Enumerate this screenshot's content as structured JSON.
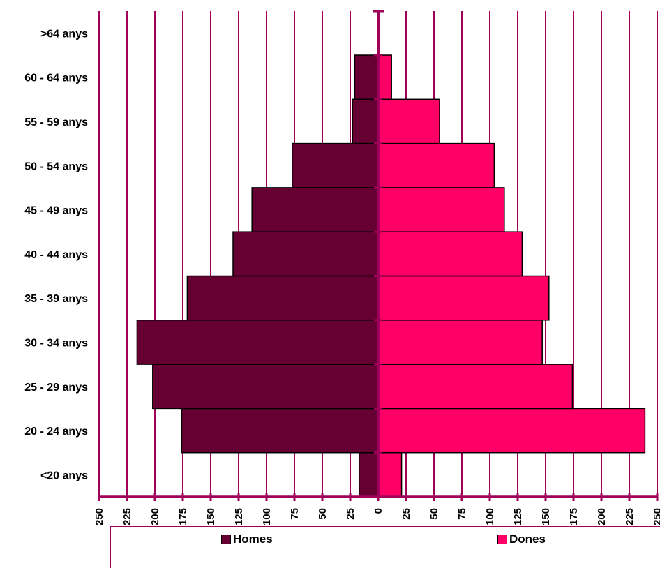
{
  "chart_data": {
    "type": "bar",
    "orientation": "horizontal-pyramid",
    "categories": [
      "<20 anys",
      "20 - 24 anys",
      "25 - 29 anys",
      "30 - 34 anys",
      "35 - 39 anys",
      "40 - 44 anys",
      "45 - 49 anys",
      "50 - 54 anys",
      "55 - 59 anys",
      "60 - 64 anys",
      ">64 anys"
    ],
    "series": [
      {
        "name": "Homes",
        "color": "#660033",
        "values": [
          17,
          176,
          202,
          216,
          171,
          130,
          113,
          77,
          23,
          21,
          0
        ]
      },
      {
        "name": "Dones",
        "color": "#ff0066",
        "values": [
          21,
          239,
          174,
          147,
          153,
          129,
          113,
          104,
          55,
          12,
          0
        ]
      }
    ],
    "xlim": [
      -250,
      250
    ],
    "x_ticks": [
      "250",
      "225",
      "200",
      "175",
      "150",
      "125",
      "100",
      "75",
      "50",
      "25",
      "0",
      "25",
      "50",
      "75",
      "100",
      "125",
      "150",
      "175",
      "200",
      "225",
      "250"
    ],
    "grid": true,
    "legend_position": "bottom"
  }
}
